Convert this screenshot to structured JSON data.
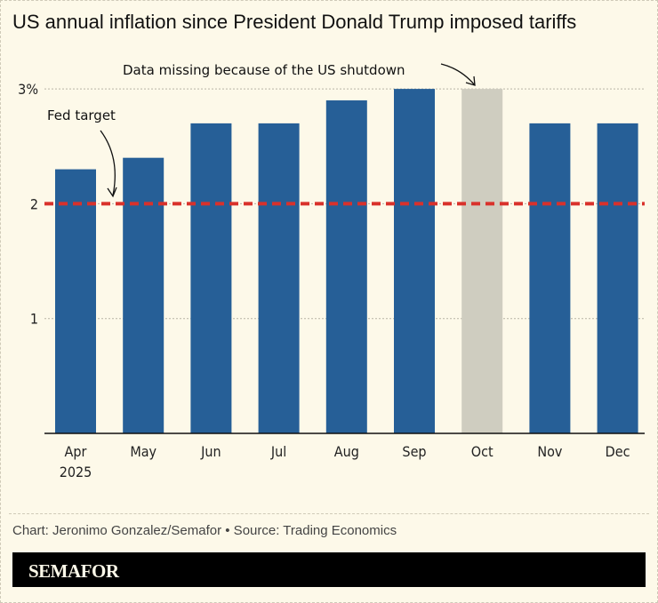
{
  "title": "US annual inflation since President Donald Trump imposed tariffs",
  "credit": "Chart: Jeronimo Gonzalez/Semafor • Source: Trading Economics",
  "logo": "SEMAFOR",
  "chart_data": {
    "type": "bar",
    "categories": [
      "Apr",
      "May",
      "Jun",
      "Jul",
      "Aug",
      "Sep",
      "Oct",
      "Nov",
      "Dec"
    ],
    "category_sublabels": [
      "2025",
      "",
      "",
      "",
      "",
      "",
      "",
      "",
      ""
    ],
    "values": [
      2.3,
      2.4,
      2.7,
      2.7,
      2.9,
      3.0,
      3.0,
      2.7,
      2.7
    ],
    "missing": [
      false,
      false,
      false,
      false,
      false,
      false,
      true,
      false,
      false
    ],
    "ylim": [
      0,
      3.0
    ],
    "yticks": [
      {
        "value": 1,
        "label": "1"
      },
      {
        "value": 2,
        "label": "2"
      },
      {
        "value": 3,
        "label": "3%"
      }
    ],
    "reference_line": {
      "value": 2,
      "label": "Fed target",
      "color": "#d9312b"
    },
    "annotations": [
      {
        "text": "Data missing because of the US shutdown",
        "category": "Oct"
      }
    ],
    "colors": {
      "bar": "#265f97",
      "missing": "#cfcdc0"
    },
    "grid": true
  }
}
